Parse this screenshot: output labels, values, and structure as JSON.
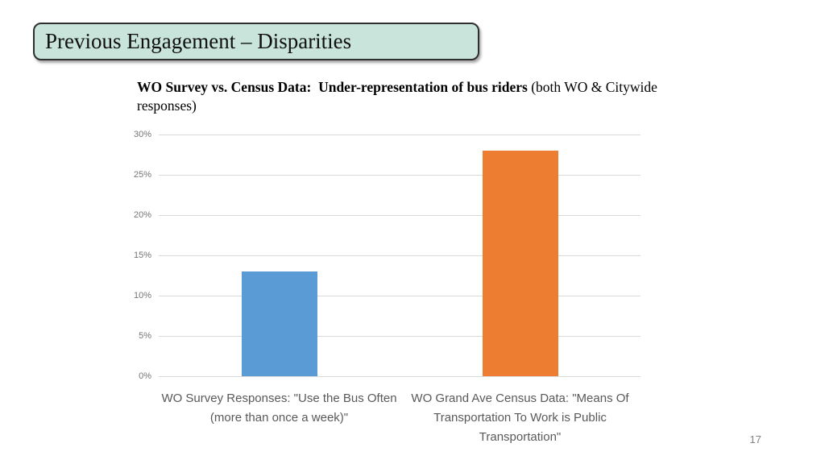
{
  "page": {
    "number": "17",
    "background": "#ffffff"
  },
  "title_banner": {
    "text": "Previous Engagement – Disparities",
    "fill": "#c8e4db",
    "border_color": "#2f2f2f"
  },
  "chart_heading": {
    "bold": "WO Survey vs. Census Data:  Under-representation of bus riders",
    "regular": " (both WO & Citywide responses)"
  },
  "chart_data": {
    "type": "bar",
    "title": "WO Survey vs. Census Data: Under-representation of bus riders (both WO & Citywide responses)",
    "categories": [
      "WO Survey Responses: \"Use the Bus Often (more than once a week)\"",
      "WO Grand Ave Census Data: \"Means Of Transportation To Work is Public Transportation\""
    ],
    "values": [
      13,
      28
    ],
    "unit": "%",
    "xlabel": "",
    "ylabel": "",
    "ylim": [
      0,
      30
    ],
    "ytick_step": 5,
    "ytick_labels": [
      "0%",
      "5%",
      "10%",
      "15%",
      "20%",
      "25%",
      "30%"
    ],
    "grid": true,
    "legend_position": "none",
    "bar_colors": [
      "#5b9bd5",
      "#ed7d31"
    ],
    "gridline_color": "#d9d9d9",
    "tick_label_color": "#757575",
    "category_label_color": "#595959"
  }
}
